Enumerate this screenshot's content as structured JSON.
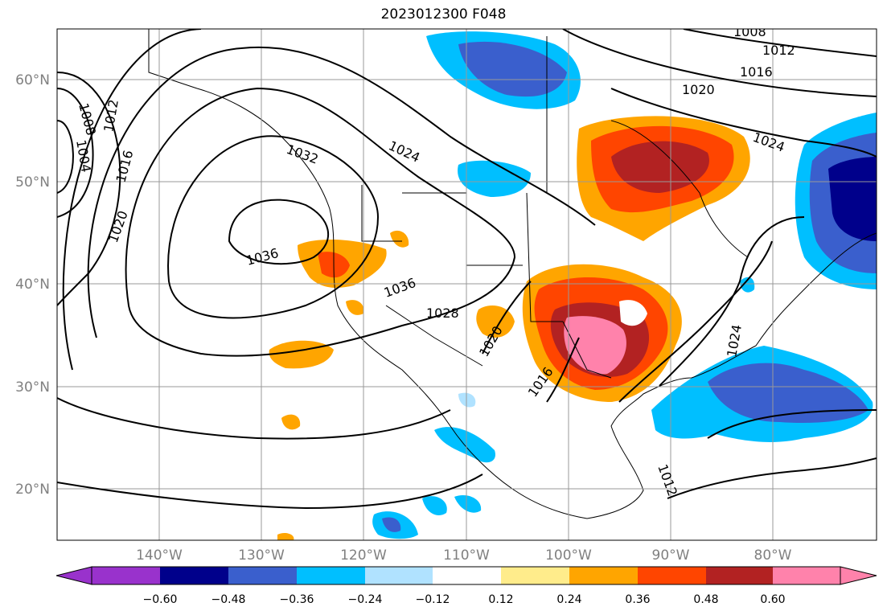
{
  "title": "2023012300 F048",
  "latitude_labels": [
    "60°N",
    "50°N",
    "40°N",
    "30°N",
    "20°N"
  ],
  "longitude_labels": [
    "140°W",
    "130°W",
    "120°W",
    "110°W",
    "100°W",
    "90°W",
    "80°W"
  ],
  "contour_labels": [
    "1008",
    "1004",
    "1012",
    "1016",
    "1020",
    "1032",
    "1024",
    "1036",
    "1036",
    "1028",
    "1020",
    "1016",
    "1024",
    "1012",
    "1016",
    "1020",
    "1024",
    "1008",
    "1012"
  ],
  "colorbar": {
    "ticks": [
      "−0.60",
      "−0.48",
      "−0.36",
      "−0.24",
      "−0.12",
      "0.12",
      "0.24",
      "0.36",
      "0.48",
      "0.60"
    ],
    "colors": [
      "#9932cc",
      "#00008b",
      "#3a5fcd",
      "#00bfff",
      "#b0e2ff",
      "#ffffff",
      "#ffec8b",
      "#ffa500",
      "#ff4500",
      "#b22222",
      "#ff82ab"
    ]
  }
}
